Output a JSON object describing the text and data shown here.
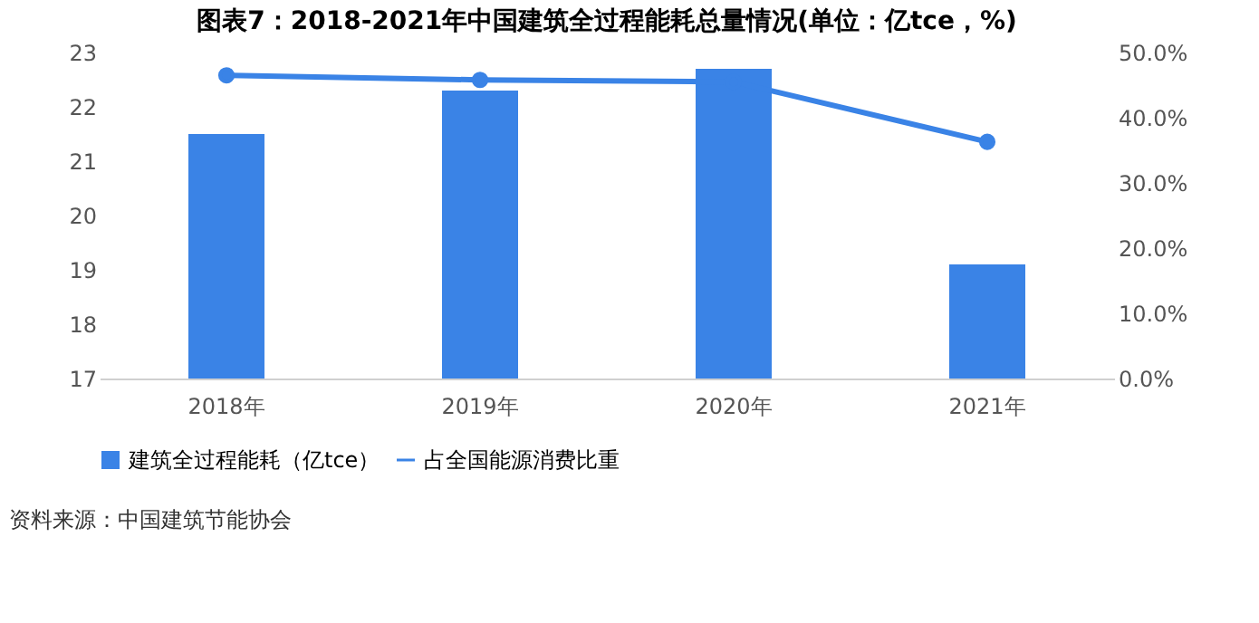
{
  "chart_data": {
    "type": "bar",
    "title": "图表7：2018-2021年中国建筑全过程能耗总量情况(单位：亿tce，%)",
    "categories": [
      "2018年",
      "2019年",
      "2020年",
      "2021年"
    ],
    "series": [
      {
        "name": "建筑全过程能耗（亿tce）",
        "color": "#3a83e6",
        "values": [
          21.5,
          22.3,
          22.7,
          19.1
        ]
      },
      {
        "name": "占全国能源消费比重",
        "color": "#3a83e6",
        "type": "line",
        "axis": "y2",
        "marker": "circle",
        "line_style": "solid",
        "values": [
          46.5,
          45.8,
          45.5,
          36.3
        ]
      }
    ],
    "ylim": [
      17,
      23
    ],
    "yticks": [
      17,
      18,
      19,
      20,
      21,
      22,
      23
    ],
    "y2lim": [
      0,
      50
    ],
    "y2ticks": [
      {
        "value": 0,
        "label": "0.0%"
      },
      {
        "value": 10,
        "label": "10.0%"
      },
      {
        "value": 20,
        "label": "20.0%"
      },
      {
        "value": 30,
        "label": "30.0%"
      },
      {
        "value": 40,
        "label": "40.0%"
      },
      {
        "value": 50,
        "label": "50.0%"
      }
    ],
    "grid": false,
    "legend": "bottom",
    "annotations": [
      "资料来源：中国建筑节能协会"
    ]
  }
}
